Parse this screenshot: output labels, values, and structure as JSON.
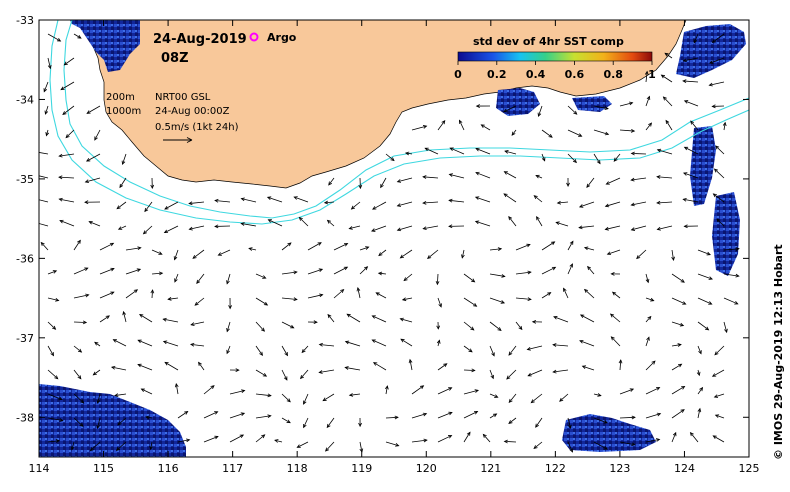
{
  "header": {
    "date": "24-Aug-2019",
    "time": "08Z",
    "argo_label": "Argo"
  },
  "colorbar": {
    "title": "std dev of 4hr SST comp",
    "ticks": [
      "0",
      "0.2",
      "0.4",
      "0.6",
      "0.8",
      "1"
    ]
  },
  "legend": {
    "contour_200": "200m",
    "contour_1000": "1000m",
    "product": "NRT00 GSL",
    "valid_time": "24-Aug 00:00Z",
    "scale": "0.5m/s (1kt 24h)"
  },
  "axes": {
    "x_ticks": [
      "114",
      "115",
      "116",
      "117",
      "118",
      "119",
      "120",
      "121",
      "122",
      "123",
      "124",
      "125"
    ],
    "y_ticks": [
      "-33",
      "-34",
      "-35",
      "-36",
      "-37",
      "-38"
    ]
  },
  "credit": "© IMOS 29-Aug-2019 12:13 Hobart",
  "colors": {
    "land": "#f8c89a",
    "contour": "#3fd8e0",
    "sst_dark": "#0a1f8a",
    "sst_mid": "#2d55d0",
    "argo": "#ff00ff"
  }
}
